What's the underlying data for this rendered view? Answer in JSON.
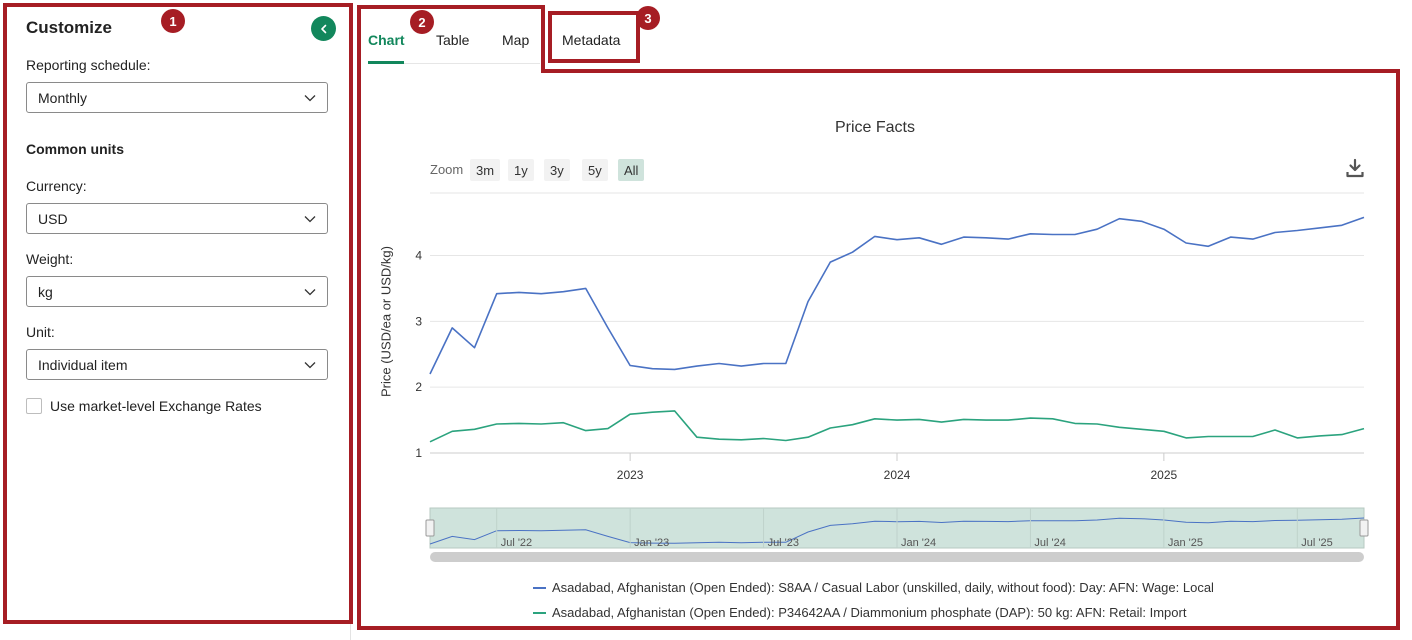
{
  "sidebar": {
    "title": "Customize",
    "reporting_schedule": {
      "label": "Reporting schedule:",
      "value": "Monthly"
    },
    "common_units_heading": "Common units",
    "currency": {
      "label": "Currency:",
      "value": "USD"
    },
    "weight": {
      "label": "Weight:",
      "value": "kg"
    },
    "unit": {
      "label": "Unit:",
      "value": "Individual item"
    },
    "exchange_checkbox": {
      "label": "Use market-level Exchange Rates",
      "checked": false
    },
    "collapse_icon": "chevron-left-icon"
  },
  "annotations": [
    "1",
    "2",
    "3"
  ],
  "tabs": [
    {
      "label": "Chart",
      "active": true
    },
    {
      "label": "Table",
      "active": false
    },
    {
      "label": "Map",
      "active": false
    },
    {
      "label": "Metadata",
      "active": false
    }
  ],
  "colors": {
    "accent": "#12875c",
    "annotation": "#a61d24",
    "series1": "#4a72c4",
    "series2": "#2ba37e",
    "navigator_fill": "#cfe3dc"
  },
  "chart_data": {
    "type": "line",
    "title": "Price Facts",
    "ylabel": "Price (USD/ea or USD/kg)",
    "ylim": [
      1,
      4.95
    ],
    "yticks": [
      "1",
      "2",
      "3",
      "4"
    ],
    "xticks": [
      "2023",
      "2024",
      "2025"
    ],
    "zoom": {
      "label": "Zoom",
      "options": [
        "3m",
        "1y",
        "3y",
        "5y",
        "All"
      ],
      "selected": "All"
    },
    "navigator_labels": [
      "Jul '22",
      "Jan '23",
      "Jul '23",
      "Jan '24",
      "Jul '24",
      "Jan '25",
      "Jul '25"
    ],
    "x": [
      "2022-04",
      "2022-05",
      "2022-06",
      "2022-07",
      "2022-08",
      "2022-09",
      "2022-10",
      "2022-11",
      "2022-12",
      "2023-01",
      "2023-02",
      "2023-03",
      "2023-04",
      "2023-05",
      "2023-06",
      "2023-07",
      "2023-08",
      "2023-09",
      "2023-10",
      "2023-11",
      "2023-12",
      "2024-01",
      "2024-02",
      "2024-03",
      "2024-04",
      "2024-05",
      "2024-06",
      "2024-07",
      "2024-08",
      "2024-09",
      "2024-10",
      "2024-11",
      "2024-12",
      "2025-01",
      "2025-02",
      "2025-03",
      "2025-04",
      "2025-05",
      "2025-06",
      "2025-07",
      "2025-08",
      "2025-09",
      "2025-10"
    ],
    "series": [
      {
        "name": "Asadabad, Afghanistan (Open Ended): S8AA / Casual Labor (unskilled, daily, without food): Day: AFN: Wage: Local",
        "values": [
          2.2,
          2.9,
          2.6,
          3.42,
          3.44,
          3.42,
          3.45,
          3.5,
          2.9,
          2.33,
          2.28,
          2.27,
          2.32,
          2.36,
          2.32,
          2.36,
          2.36,
          3.3,
          3.9,
          4.05,
          4.29,
          4.24,
          4.27,
          4.17,
          4.28,
          4.27,
          4.25,
          4.33,
          4.32,
          4.32,
          4.4,
          4.56,
          4.52,
          4.4,
          4.19,
          4.14,
          4.28,
          4.25,
          4.35,
          4.38,
          4.42,
          4.46,
          4.58
        ]
      },
      {
        "name": "Asadabad, Afghanistan (Open Ended): P34642AA / Diammonium phosphate (DAP): 50 kg: AFN: Retail: Import",
        "values": [
          1.17,
          1.33,
          1.36,
          1.44,
          1.45,
          1.44,
          1.46,
          1.34,
          1.37,
          1.59,
          1.62,
          1.64,
          1.24,
          1.21,
          1.2,
          1.22,
          1.19,
          1.24,
          1.38,
          1.43,
          1.52,
          1.5,
          1.51,
          1.47,
          1.51,
          1.5,
          1.5,
          1.53,
          1.52,
          1.45,
          1.44,
          1.39,
          1.36,
          1.33,
          1.23,
          1.25,
          1.25,
          1.25,
          1.35,
          1.23,
          1.26,
          1.28,
          1.37
        ]
      }
    ]
  }
}
